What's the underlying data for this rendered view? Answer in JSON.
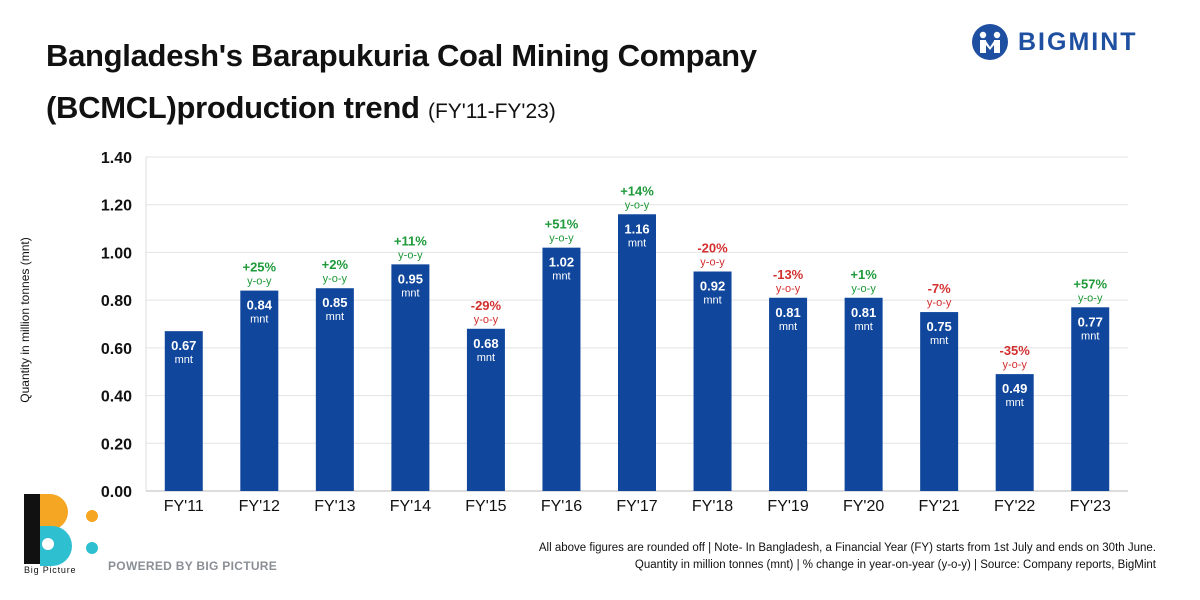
{
  "title": {
    "main_line1": "Bangladesh's Barapukuria Coal Mining Company",
    "main_line2": "(BCMCL)production trend",
    "subtitle": "(FY'11-FY'23)"
  },
  "brand": {
    "name": "BIGMINT",
    "color": "#1f4fa0"
  },
  "chart_data": {
    "type": "bar",
    "categories": [
      "FY'11",
      "FY'12",
      "FY'13",
      "FY'14",
      "FY'15",
      "FY'16",
      "FY'17",
      "FY'18",
      "FY'19",
      "FY'20",
      "FY'21",
      "FY'22",
      "FY'23"
    ],
    "values": [
      0.67,
      0.84,
      0.85,
      0.95,
      0.68,
      1.02,
      1.16,
      0.92,
      0.81,
      0.81,
      0.75,
      0.49,
      0.77
    ],
    "value_labels": [
      "0.67",
      "0.84",
      "0.85",
      "0.95",
      "0.68",
      "1.02",
      "1.16",
      "0.92",
      "0.81",
      "0.81",
      "0.75",
      "0.49",
      "0.77"
    ],
    "value_unit": "mnt",
    "yoy_change": [
      null,
      "+25%",
      "+2%",
      "+11%",
      "-29%",
      "+51%",
      "+14%",
      "-20%",
      "-13%",
      "+1%",
      "-7%",
      "-35%",
      "+57%"
    ],
    "yoy_unit": "y-o-y",
    "ylabel": "Quantity in million tonnes (mnt)",
    "ylim": [
      0,
      1.4
    ],
    "yticks": [
      "0.00",
      "0.20",
      "0.40",
      "0.60",
      "0.80",
      "1.00",
      "1.20",
      "1.40"
    ],
    "grid": true,
    "colors": {
      "bar": "#10469c",
      "positive": "#1e9a3a",
      "negative": "#d32f2f",
      "grid": "#e3e3e3"
    }
  },
  "footer": {
    "brand_name": "Big Picture",
    "powered_by": "POWERED BY BIG PICTURE",
    "note_line1": "All above figures are rounded off | Note- In Bangladesh, a Financial Year (FY) starts from 1st July and ends on 30th June.",
    "note_line2": "Quantity in million tonnes (mnt) | % change in year-on-year (y-o-y) | Source: Company reports, BigMint"
  }
}
